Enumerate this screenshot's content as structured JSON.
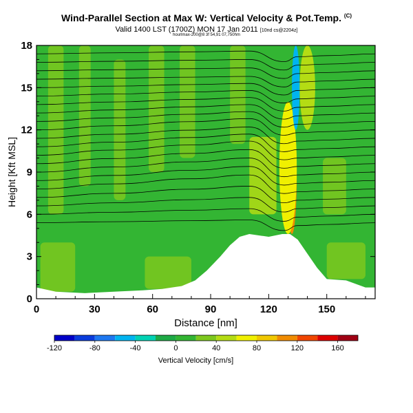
{
  "header": {
    "title": "Wind-Parallel Section at Max W: Vertical Velocity & Pot.Temp.",
    "copyright": "(C)",
    "valid_line": "Valid 1400 LST (1700Z) MON 17 Jan 2011",
    "run_info": "[10nd cs@2204z]",
    "file_line": "hourlmax-200@8 3f 54,91 07,750hm"
  },
  "colors": {
    "terrain": "#ffffff",
    "background_green": "#33b533",
    "contour": "#000000"
  },
  "chart_data": {
    "type": "heatmap",
    "title": "Wind-Parallel Section at Max W: Vertical Velocity & Pot.Temp.",
    "xlabel": "Distance [nm]",
    "ylabel": "Height [Kft MSL]",
    "xlim": [
      0,
      175
    ],
    "ylim": [
      0,
      18
    ],
    "xticks": [
      0,
      30,
      60,
      90,
      120,
      150
    ],
    "yticks": [
      0,
      3,
      6,
      9,
      12,
      15,
      18
    ],
    "colorbar": {
      "label": "Vertical Velocity [cm/s]",
      "tick_labels": [
        "-120",
        "-80",
        "-40",
        "0",
        "40",
        "80",
        "120",
        "160"
      ],
      "tick_values": [
        -120,
        -80,
        -40,
        0,
        40,
        80,
        120,
        160
      ],
      "range": [
        -120,
        180
      ],
      "bins": [
        {
          "lo": -120,
          "hi": -100,
          "color": "#0000c8"
        },
        {
          "lo": -100,
          "hi": -80,
          "color": "#0a3cdc"
        },
        {
          "lo": -80,
          "hi": -60,
          "color": "#1e78f0"
        },
        {
          "lo": -60,
          "hi": -40,
          "color": "#00b4f0"
        },
        {
          "lo": -40,
          "hi": -20,
          "color": "#00d2b4"
        },
        {
          "lo": -20,
          "hi": 0,
          "color": "#1eaa46"
        },
        {
          "lo": 0,
          "hi": 20,
          "color": "#33b533"
        },
        {
          "lo": 20,
          "hi": 40,
          "color": "#7dc81e"
        },
        {
          "lo": 40,
          "hi": 60,
          "color": "#b4dc14"
        },
        {
          "lo": 60,
          "hi": 80,
          "color": "#f0f000"
        },
        {
          "lo": 80,
          "hi": 100,
          "color": "#f0c800"
        },
        {
          "lo": 100,
          "hi": 120,
          "color": "#f08c00"
        },
        {
          "lo": 120,
          "hi": 140,
          "color": "#f04600"
        },
        {
          "lo": 140,
          "hi": 160,
          "color": "#dc0000"
        },
        {
          "lo": 160,
          "hi": 180,
          "color": "#a00014"
        }
      ]
    },
    "terrain_profile": [
      {
        "x": 0,
        "z": 0.8
      },
      {
        "x": 10,
        "z": 0.5
      },
      {
        "x": 25,
        "z": 0.4
      },
      {
        "x": 40,
        "z": 0.5
      },
      {
        "x": 55,
        "z": 0.6
      },
      {
        "x": 65,
        "z": 0.7
      },
      {
        "x": 75,
        "z": 0.9
      },
      {
        "x": 82,
        "z": 1.3
      },
      {
        "x": 88,
        "z": 2.0
      },
      {
        "x": 95,
        "z": 3.0
      },
      {
        "x": 100,
        "z": 3.8
      },
      {
        "x": 105,
        "z": 4.4
      },
      {
        "x": 110,
        "z": 4.6
      },
      {
        "x": 120,
        "z": 4.4
      },
      {
        "x": 127,
        "z": 4.6
      },
      {
        "x": 131,
        "z": 4.6
      },
      {
        "x": 135,
        "z": 4.2
      },
      {
        "x": 140,
        "z": 3.2
      },
      {
        "x": 145,
        "z": 2.2
      },
      {
        "x": 150,
        "z": 1.4
      },
      {
        "x": 160,
        "z": 1.3
      },
      {
        "x": 170,
        "z": 0.8
      },
      {
        "x": 175,
        "z": 0.8
      }
    ],
    "vertical_velocity_features": [
      {
        "name": "updraft-core",
        "x": 132,
        "z_min": 4.6,
        "z_max": 12,
        "width": 3,
        "value": 160
      },
      {
        "name": "updraft-orange",
        "x": 132,
        "z_min": 4.6,
        "z_max": 13,
        "width": 5,
        "value": 110
      },
      {
        "name": "updraft-yellow",
        "x": 130,
        "z_min": 4.6,
        "z_max": 14,
        "width": 9,
        "value": 70
      },
      {
        "name": "downdraft",
        "x": 134,
        "z_min": 12,
        "z_max": 18,
        "width": 4,
        "value": -50
      },
      {
        "name": "updraft-upper",
        "x": 140,
        "z_min": 12,
        "z_max": 18,
        "width": 8,
        "value": 50
      }
    ],
    "theta_isentropes": [
      {
        "label": "",
        "z_left": 5.4,
        "z_mid": 5.6,
        "z_right": 5.2
      },
      {
        "label": "",
        "z_left": 6.0,
        "z_mid": 6.4,
        "z_right": 5.8
      },
      {
        "label": "",
        "z_left": 6.6,
        "z_mid": 7.2,
        "z_right": 6.4
      },
      {
        "label": "",
        "z_left": 7.2,
        "z_mid": 8.0,
        "z_right": 7.0
      },
      {
        "label": "",
        "z_left": 7.8,
        "z_mid": 8.8,
        "z_right": 7.6
      },
      {
        "label": "",
        "z_left": 8.4,
        "z_mid": 9.4,
        "z_right": 8.2
      },
      {
        "label": "",
        "z_left": 9.0,
        "z_mid": 10.0,
        "z_right": 8.8
      },
      {
        "label": "",
        "z_left": 9.6,
        "z_mid": 10.6,
        "z_right": 9.4
      },
      {
        "label": "",
        "z_left": 10.2,
        "z_mid": 11.2,
        "z_right": 10.0
      },
      {
        "label": "",
        "z_left": 10.8,
        "z_mid": 11.7,
        "z_right": 10.6
      },
      {
        "label": "",
        "z_left": 11.4,
        "z_mid": 12.2,
        "z_right": 11.2
      },
      {
        "label": "",
        "z_left": 12.0,
        "z_mid": 12.8,
        "z_right": 11.8
      },
      {
        "label": "",
        "z_left": 12.6,
        "z_mid": 13.3,
        "z_right": 12.4
      },
      {
        "label": "",
        "z_left": 13.2,
        "z_mid": 13.8,
        "z_right": 13.0
      },
      {
        "label": "",
        "z_left": 13.8,
        "z_mid": 14.3,
        "z_right": 13.6
      },
      {
        "label": "",
        "z_left": 14.4,
        "z_mid": 14.8,
        "z_right": 14.2
      },
      {
        "label": "",
        "z_left": 15.0,
        "z_mid": 15.3,
        "z_right": 14.8
      },
      {
        "label": "",
        "z_left": 15.6,
        "z_mid": 15.8,
        "z_right": 15.4
      },
      {
        "label": "",
        "z_left": 16.2,
        "z_mid": 16.4,
        "z_right": 16.0
      },
      {
        "label": "",
        "z_left": 16.8,
        "z_mid": 17.0,
        "z_right": 16.6
      },
      {
        "label": "",
        "z_left": 17.4,
        "z_mid": 17.6,
        "z_right": 17.2
      }
    ]
  }
}
